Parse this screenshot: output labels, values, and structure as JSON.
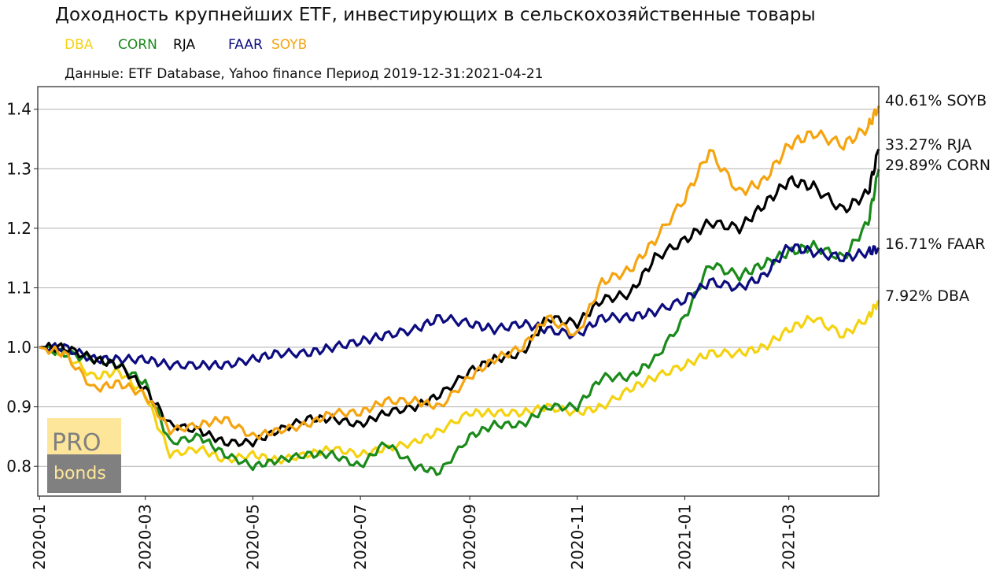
{
  "chart_data": {
    "type": "line",
    "title": "Доходность крупнейших ETF, инвестирующих в сельскохозяйственные товары",
    "subtitle": "Данные: ETF Database, Yahoo finance Период 2019-12-31:2021-04-21",
    "legend": [
      {
        "name": "DBA",
        "color": "#f5d20f"
      },
      {
        "name": "CORN",
        "color": "#1a8a1a"
      },
      {
        "name": "RJA",
        "color": "#000000"
      },
      {
        "name": "FAAR",
        "color": "#0c0c80"
      },
      {
        "name": "SOYB",
        "color": "#f5a40f"
      }
    ],
    "legend_placement": "top-left",
    "xlabel": "",
    "ylabel": "",
    "ylim": [
      0.75,
      1.438
    ],
    "yticks": [
      0.8,
      0.9,
      1.0,
      1.1,
      1.2,
      1.3,
      1.4
    ],
    "ytick_labels": [
      "0.8",
      "0.9",
      "1.0",
      "1.1",
      "1.2",
      "1.3",
      "1.4"
    ],
    "xlim": [
      "2019-12-31",
      "2021-04-21"
    ],
    "xticks": [
      "2020-01",
      "2020-03",
      "2020-05",
      "2020-07",
      "2020-09",
      "2020-11",
      "2021-01",
      "2021-03"
    ],
    "grid": "horizontal",
    "x": [
      "2020-01-01",
      "2020-01-15",
      "2020-02-01",
      "2020-02-15",
      "2020-03-01",
      "2020-03-15",
      "2020-04-01",
      "2020-04-15",
      "2020-05-01",
      "2020-05-15",
      "2020-06-01",
      "2020-06-15",
      "2020-07-01",
      "2020-07-15",
      "2020-08-01",
      "2020-08-15",
      "2020-09-01",
      "2020-09-15",
      "2020-10-01",
      "2020-10-15",
      "2020-11-01",
      "2020-11-15",
      "2020-12-01",
      "2020-12-15",
      "2021-01-01",
      "2021-01-15",
      "2021-02-01",
      "2021-02-15",
      "2021-03-01",
      "2021-03-15",
      "2021-04-01",
      "2021-04-15",
      "2021-04-21"
    ],
    "series": [
      {
        "name": "DBA",
        "color": "#f5d20f",
        "end_label": "7.92% DBA",
        "values": [
          1.0,
          0.99,
          0.95,
          0.96,
          0.92,
          0.82,
          0.83,
          0.81,
          0.82,
          0.81,
          0.82,
          0.83,
          0.82,
          0.83,
          0.84,
          0.86,
          0.89,
          0.89,
          0.89,
          0.9,
          0.89,
          0.9,
          0.93,
          0.95,
          0.97,
          0.99,
          0.99,
          1.0,
          1.03,
          1.05,
          1.02,
          1.05,
          1.079
        ]
      },
      {
        "name": "CORN",
        "color": "#1a8a1a",
        "end_label": "29.89% CORN",
        "values": [
          1.0,
          0.99,
          0.98,
          0.97,
          0.94,
          0.84,
          0.85,
          0.82,
          0.8,
          0.81,
          0.82,
          0.82,
          0.8,
          0.84,
          0.8,
          0.79,
          0.85,
          0.87,
          0.87,
          0.9,
          0.9,
          0.95,
          0.95,
          0.98,
          1.05,
          1.14,
          1.12,
          1.14,
          1.16,
          1.17,
          1.15,
          1.21,
          1.299
        ]
      },
      {
        "name": "FAAR",
        "color": "#0c0c80",
        "end_label": "16.71% FAAR",
        "values": [
          1.0,
          1.0,
          0.98,
          0.98,
          0.98,
          0.97,
          0.97,
          0.97,
          0.98,
          0.99,
          0.99,
          1.0,
          1.01,
          1.02,
          1.03,
          1.05,
          1.04,
          1.03,
          1.04,
          1.03,
          1.02,
          1.05,
          1.05,
          1.06,
          1.08,
          1.11,
          1.1,
          1.12,
          1.17,
          1.16,
          1.15,
          1.16,
          1.167
        ]
      },
      {
        "name": "RJA",
        "color": "#000000",
        "end_label": "33.27% RJA",
        "values": [
          1.0,
          1.0,
          0.98,
          0.97,
          0.93,
          0.87,
          0.86,
          0.84,
          0.84,
          0.86,
          0.88,
          0.88,
          0.87,
          0.89,
          0.9,
          0.92,
          0.96,
          0.98,
          0.99,
          1.05,
          1.04,
          1.08,
          1.09,
          1.15,
          1.18,
          1.21,
          1.2,
          1.24,
          1.28,
          1.27,
          1.23,
          1.26,
          1.333
        ]
      },
      {
        "name": "SOYB",
        "color": "#f5a40f",
        "end_label": "40.61% SOYB",
        "values": [
          1.0,
          0.99,
          0.93,
          0.94,
          0.92,
          0.86,
          0.87,
          0.88,
          0.85,
          0.86,
          0.87,
          0.89,
          0.89,
          0.91,
          0.91,
          0.9,
          0.95,
          0.98,
          1.0,
          1.05,
          1.02,
          1.11,
          1.13,
          1.18,
          1.25,
          1.33,
          1.26,
          1.28,
          1.34,
          1.36,
          1.34,
          1.37,
          1.406
        ]
      }
    ]
  },
  "logo": {
    "top": "PRO",
    "bottom": "bonds"
  }
}
